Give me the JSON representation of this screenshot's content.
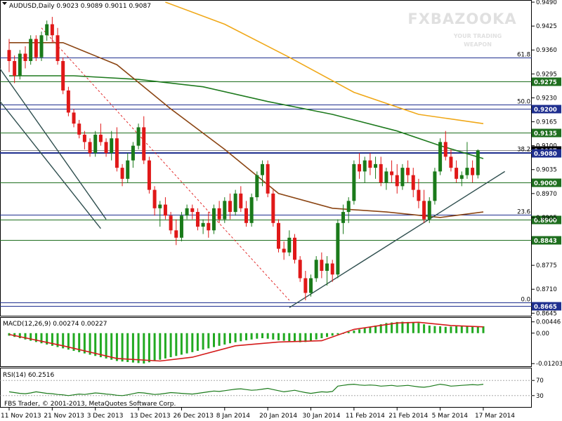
{
  "header": {
    "title": "AUDUSD,Daily  0.9023 0.9089 0.9011 0.9087"
  },
  "watermark": {
    "brand": "FXBAZOOKA",
    "tagline_1": "YOUR TRADING",
    "tagline_2": "WEAPON"
  },
  "footer": {
    "copyright": "FBS Trader, © 2001-2013, MetaQuotes Software Corp."
  },
  "colors": {
    "bull": "#1a7a1a",
    "bear": "#e01818",
    "ma_short": "#8b4513",
    "ma_mid": "#1e7a1e",
    "ma_long": "#f0a818",
    "level_blue": "#1f2f8f",
    "level_green": "#1e6e1e",
    "trend": "#2f4f4f",
    "macd_hist": "#22aa22",
    "macd_signal": "#d41a1a",
    "rsi_line": "#1a7a1a"
  },
  "chart_data": [
    {
      "type": "candlestick",
      "title": "AUDUSD,Daily",
      "ohlc_last": {
        "open": 0.9023,
        "high": 0.9089,
        "low": 0.9011,
        "close": 0.9087
      },
      "x_tick_labels": [
        "11 Nov 2013",
        "21 Nov 2013",
        "3 Dec 2013",
        "13 Dec 2013",
        "26 Dec 2013",
        "8 Jan 2014",
        "20 Jan 2014",
        "30 Jan 2014",
        "11 Feb 2014",
        "21 Feb 2014",
        "5 Mar 2014",
        "17 Mar 2014"
      ],
      "x_tick_index": [
        0,
        8,
        16,
        24,
        32,
        40,
        48,
        56,
        64,
        72,
        80,
        88
      ],
      "y_tick_labels": [
        "0.9490",
        "0.9425",
        "0.9360",
        "0.9295",
        "0.9230",
        "0.9165",
        "0.9100",
        "0.9035",
        "0.8970",
        "0.8905",
        "0.8775",
        "0.8710",
        "0.8645"
      ],
      "ylim": [
        0.8638,
        0.9492
      ],
      "horizontal_levels": [
        {
          "price": 0.934,
          "label": "61.8",
          "kind": "fib"
        },
        {
          "price": 0.9275,
          "label": "0.9275",
          "kind": "green"
        },
        {
          "price": 0.9212,
          "label": "50.0",
          "kind": "fib"
        },
        {
          "price": 0.92,
          "label": "0.9200",
          "kind": "blue"
        },
        {
          "price": 0.9135,
          "label": "0.9135",
          "kind": "green"
        },
        {
          "price": 0.9087,
          "label": "0.9087",
          "kind": "current"
        },
        {
          "price": 0.9083,
          "label": "38.2",
          "kind": "fib"
        },
        {
          "price": 0.908,
          "label": "0.9080",
          "kind": "blue"
        },
        {
          "price": 0.9,
          "label": "0.9000",
          "kind": "green"
        },
        {
          "price": 0.8912,
          "label": "23.6",
          "kind": "fib"
        },
        {
          "price": 0.89,
          "label": "0.8900",
          "kind": "green"
        },
        {
          "price": 0.8843,
          "label": "0.8843",
          "kind": "green"
        },
        {
          "price": 0.8675,
          "label": "0.0",
          "kind": "fib"
        },
        {
          "price": 0.8665,
          "label": "0.8665",
          "kind": "blue"
        }
      ],
      "candles": [
        [
          0.936,
          0.939,
          0.93,
          0.933
        ],
        [
          0.933,
          0.9345,
          0.927,
          0.929
        ],
        [
          0.929,
          0.936,
          0.928,
          0.935
        ],
        [
          0.935,
          0.937,
          0.931,
          0.933
        ],
        [
          0.933,
          0.94,
          0.932,
          0.939
        ],
        [
          0.939,
          0.94,
          0.933,
          0.934
        ],
        [
          0.934,
          0.941,
          0.933,
          0.94
        ],
        [
          0.94,
          0.944,
          0.9385,
          0.943
        ],
        [
          0.943,
          0.945,
          0.938,
          0.94
        ],
        [
          0.94,
          0.942,
          0.932,
          0.933
        ],
        [
          0.933,
          0.934,
          0.924,
          0.925
        ],
        [
          0.925,
          0.926,
          0.918,
          0.919
        ],
        [
          0.919,
          0.92,
          0.915,
          0.916
        ],
        [
          0.916,
          0.917,
          0.912,
          0.913
        ],
        [
          0.913,
          0.914,
          0.909,
          0.911
        ],
        [
          0.911,
          0.912,
          0.907,
          0.908
        ],
        [
          0.908,
          0.914,
          0.907,
          0.913
        ],
        [
          0.913,
          0.916,
          0.91,
          0.911
        ],
        [
          0.911,
          0.912,
          0.907,
          0.908
        ],
        [
          0.908,
          0.914,
          0.906,
          0.912
        ],
        [
          0.912,
          0.915,
          0.903,
          0.904
        ],
        [
          0.904,
          0.905,
          0.899,
          0.901
        ],
        [
          0.901,
          0.908,
          0.9,
          0.906
        ],
        [
          0.906,
          0.911,
          0.904,
          0.91
        ],
        [
          0.91,
          0.916,
          0.909,
          0.915
        ],
        [
          0.915,
          0.918,
          0.905,
          0.906
        ],
        [
          0.906,
          0.907,
          0.897,
          0.898
        ],
        [
          0.898,
          0.899,
          0.891,
          0.893
        ],
        [
          0.893,
          0.895,
          0.888,
          0.894
        ],
        [
          0.894,
          0.896,
          0.89,
          0.891
        ],
        [
          0.891,
          0.892,
          0.886,
          0.887
        ],
        [
          0.887,
          0.89,
          0.883,
          0.885
        ],
        [
          0.885,
          0.892,
          0.884,
          0.891
        ],
        [
          0.891,
          0.894,
          0.89,
          0.893
        ],
        [
          0.893,
          0.894,
          0.89,
          0.892
        ],
        [
          0.892,
          0.893,
          0.887,
          0.888
        ],
        [
          0.888,
          0.89,
          0.886,
          0.889
        ],
        [
          0.889,
          0.892,
          0.885,
          0.887
        ],
        [
          0.887,
          0.894,
          0.886,
          0.893
        ],
        [
          0.893,
          0.895,
          0.889,
          0.89
        ],
        [
          0.89,
          0.896,
          0.889,
          0.895
        ],
        [
          0.895,
          0.897,
          0.89,
          0.892
        ],
        [
          0.892,
          0.898,
          0.891,
          0.897
        ],
        [
          0.897,
          0.899,
          0.892,
          0.893
        ],
        [
          0.893,
          0.895,
          0.888,
          0.889
        ],
        [
          0.889,
          0.897,
          0.888,
          0.896
        ],
        [
          0.896,
          0.903,
          0.895,
          0.902
        ],
        [
          0.902,
          0.906,
          0.899,
          0.905
        ],
        [
          0.905,
          0.906,
          0.896,
          0.897
        ],
        [
          0.897,
          0.898,
          0.888,
          0.889
        ],
        [
          0.889,
          0.89,
          0.881,
          0.882
        ],
        [
          0.882,
          0.884,
          0.879,
          0.881
        ],
        [
          0.881,
          0.887,
          0.88,
          0.885
        ],
        [
          0.885,
          0.886,
          0.878,
          0.879
        ],
        [
          0.879,
          0.88,
          0.873,
          0.874
        ],
        [
          0.874,
          0.876,
          0.868,
          0.87
        ],
        [
          0.87,
          0.875,
          0.869,
          0.874
        ],
        [
          0.874,
          0.88,
          0.873,
          0.879
        ],
        [
          0.879,
          0.881,
          0.874,
          0.876
        ],
        [
          0.876,
          0.88,
          0.872,
          0.878
        ],
        [
          0.878,
          0.879,
          0.873,
          0.875
        ],
        [
          0.875,
          0.89,
          0.874,
          0.889
        ],
        [
          0.889,
          0.894,
          0.886,
          0.892
        ],
        [
          0.892,
          0.896,
          0.889,
          0.895
        ],
        [
          0.895,
          0.906,
          0.894,
          0.905
        ],
        [
          0.905,
          0.908,
          0.901,
          0.903
        ],
        [
          0.903,
          0.907,
          0.9,
          0.906
        ],
        [
          0.906,
          0.908,
          0.902,
          0.904
        ],
        [
          0.904,
          0.907,
          0.901,
          0.905
        ],
        [
          0.905,
          0.907,
          0.899,
          0.9
        ],
        [
          0.9,
          0.904,
          0.898,
          0.903
        ],
        [
          0.903,
          0.906,
          0.9,
          0.902
        ],
        [
          0.902,
          0.905,
          0.897,
          0.899
        ],
        [
          0.899,
          0.905,
          0.898,
          0.904
        ],
        [
          0.904,
          0.906,
          0.9,
          0.902
        ],
        [
          0.902,
          0.904,
          0.896,
          0.898
        ],
        [
          0.898,
          0.901,
          0.893,
          0.895
        ],
        [
          0.895,
          0.898,
          0.889,
          0.89
        ],
        [
          0.89,
          0.896,
          0.889,
          0.895
        ],
        [
          0.895,
          0.904,
          0.894,
          0.903
        ],
        [
          0.903,
          0.912,
          0.902,
          0.911
        ],
        [
          0.911,
          0.914,
          0.906,
          0.907
        ],
        [
          0.907,
          0.909,
          0.903,
          0.904
        ],
        [
          0.904,
          0.906,
          0.9,
          0.901
        ],
        [
          0.901,
          0.903,
          0.899,
          0.902
        ],
        [
          0.902,
          0.911,
          0.901,
          0.904
        ],
        [
          0.904,
          0.906,
          0.9,
          0.902
        ],
        [
          0.902,
          0.909,
          0.9011,
          0.9087
        ]
      ],
      "ma_short_points": [
        [
          0,
          0.938
        ],
        [
          10,
          0.938
        ],
        [
          20,
          0.932
        ],
        [
          30,
          0.92
        ],
        [
          40,
          0.909
        ],
        [
          50,
          0.897
        ],
        [
          60,
          0.893
        ],
        [
          70,
          0.892
        ],
        [
          80,
          0.8905
        ],
        [
          88,
          0.892
        ]
      ],
      "ma_mid_points": [
        [
          0,
          0.929
        ],
        [
          12,
          0.929
        ],
        [
          24,
          0.928
        ],
        [
          36,
          0.926
        ],
        [
          48,
          0.922
        ],
        [
          60,
          0.9185
        ],
        [
          72,
          0.914
        ],
        [
          80,
          0.91
        ],
        [
          88,
          0.9065
        ]
      ],
      "ma_long_points": [
        [
          29,
          0.949
        ],
        [
          40,
          0.943
        ],
        [
          52,
          0.934
        ],
        [
          64,
          0.9245
        ],
        [
          76,
          0.9185
        ],
        [
          88,
          0.916
        ]
      ],
      "trendlines": [
        {
          "from": [
            -8,
            0.944
          ],
          "to": [
            18,
            0.89
          ],
          "style": "solid"
        },
        {
          "from": [
            -6,
            0.93
          ],
          "to": [
            17,
            0.8875
          ],
          "style": "solid"
        },
        {
          "from": [
            52,
            0.866
          ],
          "to": [
            92,
            0.903
          ],
          "style": "solid"
        },
        {
          "from": [
            6,
            0.942
          ],
          "to": [
            52,
            0.868
          ],
          "style": "dashed"
        }
      ]
    },
    {
      "type": "bar",
      "title": "MACD(12,26,9) 0.00274 0.00227",
      "y_tick_labels": [
        "0.00446",
        "0.00",
        "-0.01203"
      ],
      "ylim": [
        -0.0128,
        0.0052
      ],
      "histogram": [
        -0.001,
        -0.0015,
        -0.002,
        -0.0025,
        -0.003,
        -0.0035,
        -0.004,
        -0.0045,
        -0.005,
        -0.0055,
        -0.006,
        -0.0065,
        -0.007,
        -0.0075,
        -0.008,
        -0.0085,
        -0.009,
        -0.0095,
        -0.01,
        -0.0105,
        -0.011,
        -0.0112,
        -0.0114,
        -0.0116,
        -0.0118,
        -0.012,
        -0.0115,
        -0.011,
        -0.0105,
        -0.01,
        -0.0095,
        -0.009,
        -0.0085,
        -0.008,
        -0.0075,
        -0.007,
        -0.0065,
        -0.006,
        -0.0055,
        -0.005,
        -0.0045,
        -0.004,
        -0.0036,
        -0.0032,
        -0.0028,
        -0.0025,
        -0.0022,
        -0.002,
        -0.0022,
        -0.0025,
        -0.0028,
        -0.003,
        -0.0032,
        -0.0035,
        -0.0036,
        -0.0035,
        -0.003,
        -0.0025,
        -0.002,
        -0.0015,
        -0.001,
        -0.0005,
        0.0,
        0.0005,
        0.001,
        0.0015,
        0.002,
        0.0025,
        0.003,
        0.0035,
        0.004,
        0.0042,
        0.0044,
        0.0045,
        0.0044,
        0.0042,
        0.004,
        0.0035,
        0.003,
        0.0028,
        0.0027,
        0.0025,
        0.0026,
        0.0027,
        0.0028,
        0.0027,
        0.0026,
        0.0027,
        0.0027
      ],
      "signal_points": [
        [
          0,
          -0.0005
        ],
        [
          10,
          -0.005
        ],
        [
          20,
          -0.01
        ],
        [
          28,
          -0.011
        ],
        [
          34,
          -0.0095
        ],
        [
          42,
          -0.005
        ],
        [
          50,
          -0.0035
        ],
        [
          58,
          -0.003
        ],
        [
          64,
          0.0015
        ],
        [
          72,
          0.004
        ],
        [
          76,
          0.0043
        ],
        [
          82,
          0.003
        ],
        [
          88,
          0.0025
        ]
      ]
    },
    {
      "type": "line",
      "title": "RSI(14) 60.2516",
      "y_tick_labels": [
        "70",
        "30"
      ],
      "levels": [
        70,
        30
      ],
      "ylim": [
        0,
        100
      ],
      "values": [
        40,
        38,
        36,
        35,
        37,
        40,
        38,
        36,
        35,
        33,
        32,
        30,
        32,
        34,
        33,
        35,
        37,
        36,
        34,
        33,
        31,
        30,
        32,
        35,
        38,
        37,
        35,
        33,
        34,
        36,
        38,
        37,
        36,
        35,
        34,
        36,
        38,
        40,
        42,
        41,
        43,
        45,
        47,
        48,
        46,
        44,
        45,
        47,
        49,
        46,
        43,
        40,
        42,
        44,
        41,
        38,
        36,
        38,
        40,
        39,
        41,
        55,
        57,
        59,
        60,
        58,
        57,
        58,
        57,
        55,
        56,
        57,
        55,
        56,
        57,
        55,
        53,
        52,
        54,
        57,
        60,
        58,
        55,
        56,
        57,
        58,
        59,
        58,
        60
      ]
    }
  ]
}
